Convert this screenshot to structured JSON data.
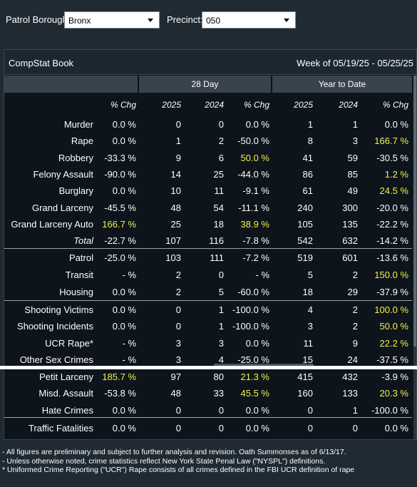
{
  "filters": {
    "borough_label": "Patrol Borough:",
    "borough_value": "Bronx",
    "precinct_label": "Precinct:",
    "precinct_value": "050"
  },
  "book": {
    "title": "CompStat Book",
    "week": "Week of 05/19/25 - 05/25/25"
  },
  "groups": {
    "day28": "28 Day",
    "ytd": "Year to Date"
  },
  "columns": [
    "% Chg",
    "2025",
    "2024",
    "% Chg",
    "2025",
    "2024",
    "% Chg"
  ],
  "rows": [
    {
      "label": "Murder",
      "v": [
        "0.0 %",
        "0",
        "0",
        "0.0 %",
        "1",
        "1",
        "0.0 %"
      ],
      "hl": []
    },
    {
      "label": "Rape",
      "v": [
        "0.0 %",
        "1",
        "2",
        "-50.0 %",
        "8",
        "3",
        "166.7 %"
      ],
      "hl": [
        6
      ]
    },
    {
      "label": "Robbery",
      "v": [
        "-33.3 %",
        "9",
        "6",
        "50.0 %",
        "41",
        "59",
        "-30.5 %"
      ],
      "hl": [
        3
      ]
    },
    {
      "label": "Felony Assault",
      "v": [
        "-90.0 %",
        "14",
        "25",
        "-44.0 %",
        "86",
        "85",
        "1.2 %"
      ],
      "hl": [
        6
      ]
    },
    {
      "label": "Burglary",
      "v": [
        "0.0 %",
        "10",
        "11",
        "-9.1 %",
        "61",
        "49",
        "24.5 %"
      ],
      "hl": [
        6
      ]
    },
    {
      "label": "Grand Larceny",
      "v": [
        "-45.5 %",
        "48",
        "54",
        "-11.1 %",
        "240",
        "300",
        "-20.0 %"
      ],
      "hl": []
    },
    {
      "label": "Grand Larceny Auto",
      "v": [
        "166.7 %",
        "25",
        "18",
        "38.9 %",
        "105",
        "135",
        "-22.2 %"
      ],
      "hl": [
        0,
        3
      ]
    },
    {
      "label": "Total",
      "v": [
        "-22.7 %",
        "107",
        "116",
        "-7.8 %",
        "542",
        "632",
        "-14.2 %"
      ],
      "hl": [],
      "italic": true
    },
    {
      "label": "Patrol",
      "v": [
        "-25.0 %",
        "103",
        "111",
        "-7.2 %",
        "519",
        "601",
        "-13.6 %"
      ],
      "hl": []
    },
    {
      "label": "Transit",
      "v": [
        "- %",
        "2",
        "0",
        "- %",
        "5",
        "2",
        "150.0 %"
      ],
      "hl": [
        6
      ]
    },
    {
      "label": "Housing",
      "v": [
        "0.0 %",
        "2",
        "5",
        "-60.0 %",
        "18",
        "29",
        "-37.9 %"
      ],
      "hl": []
    },
    {
      "label": "Shooting Victims",
      "v": [
        "0.0 %",
        "0",
        "1",
        "-100.0 %",
        "4",
        "2",
        "100.0 %"
      ],
      "hl": [
        6
      ]
    },
    {
      "label": "Shooting Incidents",
      "v": [
        "0.0 %",
        "0",
        "1",
        "-100.0 %",
        "3",
        "2",
        "50.0 %"
      ],
      "hl": [
        6
      ]
    },
    {
      "label": "UCR Rape*",
      "v": [
        "- %",
        "3",
        "3",
        "0.0 %",
        "11",
        "9",
        "22.2 %"
      ],
      "hl": [
        6
      ]
    },
    {
      "label": "Other Sex Crimes",
      "v": [
        "- %",
        "3",
        "4",
        "-25.0 %",
        "15",
        "24",
        "-37.5 %"
      ],
      "hl": []
    },
    {
      "label": "Petit Larceny",
      "v": [
        "185.7 %",
        "97",
        "80",
        "21.3 %",
        "415",
        "432",
        "-3.9 %"
      ],
      "hl": [
        0,
        3
      ]
    },
    {
      "label": "Misd. Assault",
      "v": [
        "-53.8 %",
        "48",
        "33",
        "45.5 %",
        "160",
        "133",
        "20.3 %"
      ],
      "hl": [
        3,
        6
      ]
    },
    {
      "label": "Hate Crimes",
      "v": [
        "0.0 %",
        "0",
        "0",
        "0.0 %",
        "0",
        "1",
        "-100.0 %"
      ],
      "hl": []
    },
    {
      "label": "Traffic Fatalities",
      "v": [
        "0.0 %",
        "0",
        "0",
        "0.0 %",
        "0",
        "0",
        "0.0 %"
      ],
      "hl": []
    }
  ],
  "footnotes": [
    "- All figures are preliminary and subject to further analysis and revision. Oath Summonses as of 6/13/17.",
    "- Unless otherwise noted, crime statistics reflect New York State Penal Law (\"NYSPL\") definitions.",
    "* Uniformed Crime Reporting (\"UCR\") Rape consists of all crimes defined in the FBI UCR definition of rape"
  ],
  "colors": {
    "highlight": "#f2f24b",
    "background": "#0d141b",
    "header": "#39434d"
  }
}
